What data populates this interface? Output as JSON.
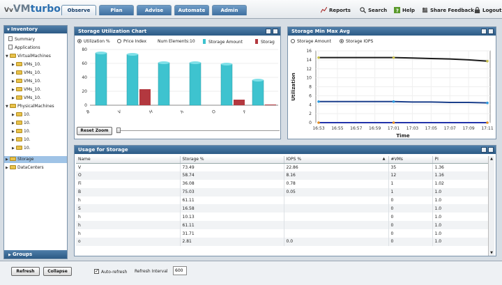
{
  "app": {
    "logo_prefix": "Vv",
    "logo_main": "VM",
    "logo_suffix": "turbo"
  },
  "tabs": [
    "Observe",
    "Plan",
    "Advise",
    "Automate",
    "Admin"
  ],
  "actions": [
    "Reports",
    "Search",
    "Help",
    "Share Feedback",
    "Logout"
  ],
  "sidebar": {
    "title": "Inventory",
    "items": [
      "Summary",
      "Applications",
      "VirtualMachines",
      "VMs_10.",
      "VMs_10.",
      "VMs_10.",
      "VMs_10.",
      "VMs_10.",
      "PhysicalMachines",
      "10.",
      "10.",
      "10.",
      "10.",
      "10.",
      "Storage",
      "DataCenters"
    ],
    "groups_label": "Groups"
  },
  "storage_chart": {
    "title": "Storage Utilization Chart",
    "radio_util": "Utilization %",
    "radio_price": "Price Index",
    "num_elements": "Num Elements:10",
    "legend_amount": "Storage Amount",
    "legend_iops": "Storag",
    "reset_zoom": "Reset Zoom",
    "chart_data": {
      "type": "bar",
      "categories": [
        "B",
        "V",
        "H",
        "h",
        "O",
        "F"
      ],
      "series": [
        {
          "name": "Storage Amount",
          "values": [
            75,
            73,
            61,
            61,
            59,
            36
          ]
        },
        {
          "name": "Storage IOPS",
          "values": [
            0,
            23,
            0,
            0,
            8,
            1
          ]
        }
      ],
      "ylim": [
        0,
        80
      ],
      "yticks": [
        "80",
        "60",
        "40",
        "20",
        "0"
      ],
      "colors": [
        "#3ec3cf",
        "#b3383f"
      ]
    }
  },
  "minmax_chart": {
    "title": "Storage Min Max Avg",
    "radio_amount": "Storage Amount",
    "radio_iops": "Storage IOPS",
    "ylabel": "Utilization",
    "xlabel": "Time",
    "chart_data": {
      "type": "line",
      "x": [
        "16:53",
        "16:55",
        "16:57",
        "16:59",
        "17:01",
        "17:03",
        "17:05",
        "17:07",
        "17:09",
        "17:11"
      ],
      "series": [
        {
          "values": [
            14.5,
            14.5,
            14.5,
            14.5,
            14.5,
            14.4,
            14.3,
            14.2,
            14.0,
            13.7
          ]
        },
        {
          "values": [
            4.7,
            4.7,
            4.7,
            4.7,
            4.7,
            4.6,
            4.6,
            4.5,
            4.5,
            4.4
          ]
        },
        {
          "values": [
            0,
            0,
            0,
            0,
            0,
            0,
            0,
            0,
            0,
            0
          ]
        }
      ],
      "ylim": [
        0,
        16
      ],
      "yticks": [
        "16",
        "14",
        "12",
        "10",
        "8",
        "6",
        "4",
        "2",
        "0"
      ]
    }
  },
  "usage": {
    "title": "Usage for Storage",
    "columns": [
      "Name",
      "Storage %",
      "IOPS %",
      "#VMs",
      "PI"
    ],
    "rows": [
      [
        "V",
        "73.49",
        "22.86",
        "35",
        "1.36"
      ],
      [
        "O",
        "58.74",
        "8.16",
        "12",
        "1.16"
      ],
      [
        "Fi",
        "36.08",
        "0.78",
        "1",
        "1.02"
      ],
      [
        "B",
        "75.03",
        "0.05",
        "1",
        "1.0"
      ],
      [
        "h",
        "61.11",
        "",
        "0",
        "1.0"
      ],
      [
        "S",
        "16.58",
        "",
        "0",
        "1.0"
      ],
      [
        "h",
        "10.13",
        "",
        "0",
        "1.0"
      ],
      [
        "h",
        "61.11",
        "",
        "0",
        "1.0"
      ],
      [
        "h",
        "31.71",
        "",
        "0",
        "1.0"
      ],
      [
        "o",
        "2.81",
        "0.0",
        "0",
        "1.0"
      ]
    ]
  },
  "bottom": {
    "refresh": "Refresh",
    "collapse": "Collapse",
    "auto_refresh": "Auto-refresh",
    "interval_label": "Refresh Interval",
    "interval_value": "600"
  }
}
